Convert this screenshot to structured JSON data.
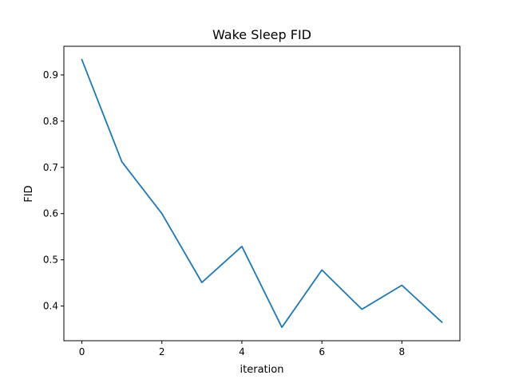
{
  "chart_data": {
    "type": "line",
    "title": "Wake Sleep FID",
    "xlabel": "iteration",
    "ylabel": "FID",
    "x": [
      0,
      1,
      2,
      3,
      4,
      5,
      6,
      7,
      8,
      9
    ],
    "series": [
      {
        "values": [
          0.933,
          0.712,
          0.6,
          0.451,
          0.529,
          0.354,
          0.478,
          0.393,
          0.445,
          0.365
        ],
        "color": "#1f77b4"
      }
    ],
    "xlim": [
      -0.45,
      9.45
    ],
    "ylim": [
      0.325,
      0.962
    ],
    "xticks": [
      0,
      2,
      4,
      6,
      8
    ],
    "xtick_labels": [
      "0",
      "2",
      "4",
      "6",
      "8"
    ],
    "yticks": [
      0.4,
      0.5,
      0.6,
      0.7,
      0.8,
      0.9
    ],
    "ytick_labels": [
      "0.4",
      "0.5",
      "0.6",
      "0.7",
      "0.8",
      "0.9"
    ],
    "grid": false,
    "legend": "none"
  }
}
